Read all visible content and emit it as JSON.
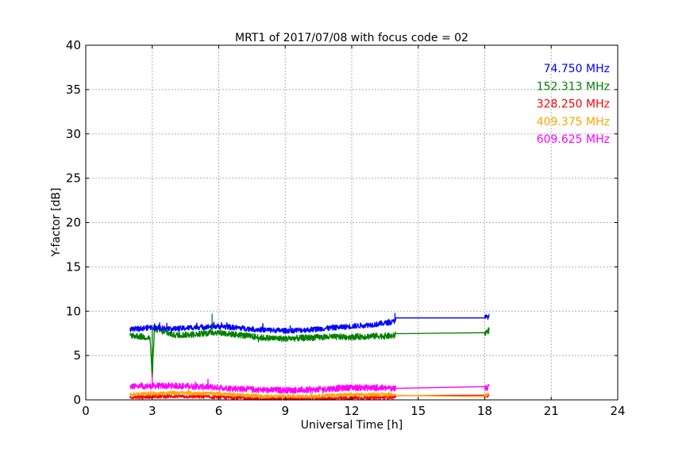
{
  "chart_data": {
    "type": "line",
    "title": "MRT1 of 2017/07/08 with focus code = 02",
    "xlabel": "Universal Time [h]",
    "ylabel": "Y-factor [dB]",
    "xlim": [
      0,
      24
    ],
    "ylim": [
      0,
      40
    ],
    "xticks": [
      0,
      3,
      6,
      9,
      12,
      15,
      18,
      21,
      24
    ],
    "yticks": [
      0,
      5,
      10,
      15,
      20,
      25,
      30,
      35,
      40
    ],
    "grid": true,
    "legend_placement": "top-right",
    "series": [
      {
        "name": "74.750 MHz",
        "color": "#0000ff",
        "noise": 0.3,
        "points": [
          [
            2.0,
            7.9
          ],
          [
            3.0,
            8.2
          ],
          [
            4.0,
            8.0
          ],
          [
            5.0,
            8.2
          ],
          [
            6.0,
            8.3
          ],
          [
            7.0,
            8.1
          ],
          [
            8.0,
            7.9
          ],
          [
            9.0,
            7.8
          ],
          [
            10.0,
            7.9
          ],
          [
            11.0,
            8.1
          ],
          [
            12.0,
            8.3
          ],
          [
            13.0,
            8.5
          ],
          [
            13.9,
            8.8
          ],
          [
            14.0,
            9.3
          ],
          [
            18.0,
            9.3
          ],
          [
            18.2,
            9.4
          ]
        ]
      },
      {
        "name": "152.313 MHz",
        "color": "#008000",
        "noise": 0.35,
        "points": [
          [
            2.0,
            7.3
          ],
          [
            2.9,
            7.0
          ],
          [
            3.0,
            2.5
          ],
          [
            3.1,
            8.0
          ],
          [
            4.0,
            7.3
          ],
          [
            5.0,
            7.4
          ],
          [
            5.7,
            7.6
          ],
          [
            6.0,
            7.6
          ],
          [
            7.0,
            7.3
          ],
          [
            8.0,
            7.0
          ],
          [
            9.0,
            6.9
          ],
          [
            10.0,
            7.0
          ],
          [
            11.0,
            7.1
          ],
          [
            12.0,
            7.1
          ],
          [
            13.0,
            7.2
          ],
          [
            13.9,
            7.2
          ],
          [
            14.0,
            7.5
          ],
          [
            18.0,
            7.5
          ],
          [
            18.2,
            7.9
          ]
        ]
      },
      {
        "name": "328.250 MHz",
        "color": "#ff0000",
        "noise": 0.2,
        "points": [
          [
            2.0,
            0.3
          ],
          [
            4.0,
            0.4
          ],
          [
            6.0,
            0.3
          ],
          [
            8.0,
            0.1
          ],
          [
            10.0,
            0.1
          ],
          [
            12.0,
            0.2
          ],
          [
            13.9,
            0.3
          ],
          [
            14.0,
            0.5
          ],
          [
            18.0,
            0.5
          ],
          [
            18.2,
            0.5
          ]
        ]
      },
      {
        "name": "409.375 MHz",
        "color": "#ffa500",
        "noise": 0.2,
        "points": [
          [
            2.0,
            0.6
          ],
          [
            4.0,
            0.8
          ],
          [
            6.0,
            0.7
          ],
          [
            8.0,
            0.4
          ],
          [
            10.0,
            0.4
          ],
          [
            12.0,
            0.6
          ],
          [
            13.9,
            0.6
          ],
          [
            14.0,
            0.5
          ],
          [
            18.0,
            0.5
          ],
          [
            18.2,
            0.6
          ]
        ]
      },
      {
        "name": "609.625 MHz",
        "color": "#ff00ff",
        "noise": 0.35,
        "points": [
          [
            2.0,
            1.5
          ],
          [
            4.0,
            1.6
          ],
          [
            6.0,
            1.4
          ],
          [
            8.0,
            1.1
          ],
          [
            10.0,
            1.1
          ],
          [
            12.0,
            1.4
          ],
          [
            13.9,
            1.3
          ],
          [
            14.0,
            1.3
          ],
          [
            18.0,
            1.3
          ],
          [
            18.2,
            1.4
          ]
        ]
      }
    ],
    "spikes": [
      {
        "series": 1,
        "x": 5.7,
        "y": 9.7
      },
      {
        "series": 1,
        "x": 3.0,
        "y": 8.2
      },
      {
        "series": 0,
        "x": 13.95,
        "y": 9.8
      },
      {
        "series": 4,
        "x": 3.0,
        "y": 2.9
      }
    ]
  }
}
